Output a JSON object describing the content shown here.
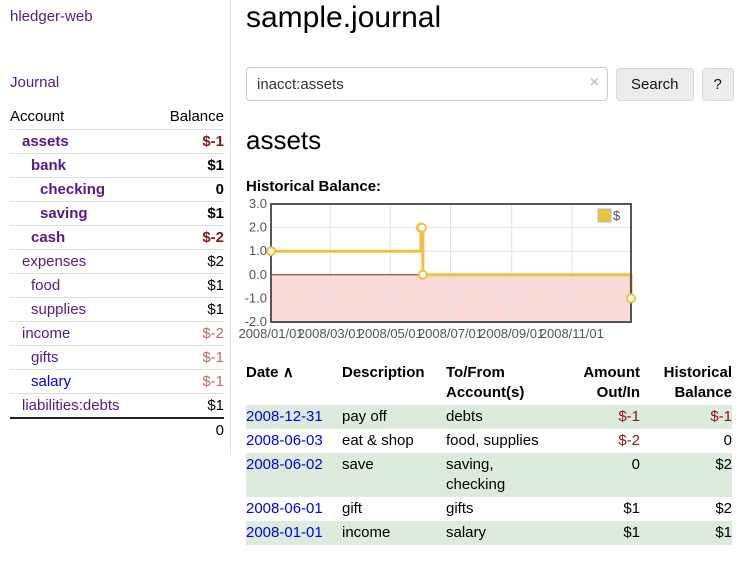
{
  "sidebar": {
    "brand": "hledger-web",
    "journal_link": "Journal",
    "accounts_table": {
      "account_header": "Account",
      "balance_header": "Balance",
      "rows": [
        {
          "account": "assets",
          "indent": 1,
          "bold": true,
          "balance": "$-1",
          "negative": "strong",
          "link": "visited"
        },
        {
          "account": "bank",
          "indent": 2,
          "bold": true,
          "balance": "$1",
          "negative": null,
          "link": "visited"
        },
        {
          "account": "checking",
          "indent": 3,
          "bold": true,
          "balance": "0",
          "negative": null,
          "link": "visited"
        },
        {
          "account": "saving",
          "indent": 3,
          "bold": true,
          "balance": "$1",
          "negative": null,
          "link": "visited"
        },
        {
          "account": "cash",
          "indent": 2,
          "bold": true,
          "balance": "$-2",
          "negative": "strong",
          "link": "visited"
        },
        {
          "account": "expenses",
          "indent": 1,
          "bold": false,
          "balance": "$2",
          "negative": null,
          "link": "visited"
        },
        {
          "account": "food",
          "indent": 2,
          "bold": false,
          "balance": "$1",
          "negative": null,
          "link": "visited"
        },
        {
          "account": "supplies",
          "indent": 2,
          "bold": false,
          "balance": "$1",
          "negative": null,
          "link": "visited"
        },
        {
          "account": "income",
          "indent": 1,
          "bold": false,
          "balance": "$-2",
          "negative": "soft",
          "link": "visited"
        },
        {
          "account": "gifts",
          "indent": 2,
          "bold": false,
          "balance": "$-1",
          "negative": "soft",
          "link": "visited"
        },
        {
          "account": "salary",
          "indent": 2,
          "bold": false,
          "balance": "$-1",
          "negative": "soft",
          "link": "unvisited"
        },
        {
          "account": "liabilities:debts",
          "indent": 1,
          "bold": false,
          "balance": "$1",
          "negative": null,
          "link": "visited"
        }
      ],
      "total": "0"
    }
  },
  "main": {
    "title": "sample.journal",
    "search": {
      "query": "inacct:assets",
      "clear_icon": "×",
      "search_button": "Search",
      "help_button": "?"
    },
    "account_heading": "assets",
    "chart_heading": "Historical Balance:"
  },
  "chart_data": {
    "type": "line",
    "step": true,
    "title": "Historical Balance",
    "series": [
      {
        "name": "$",
        "color": "#edc240",
        "points": [
          {
            "date": "2008-01-01",
            "day": 0,
            "value": 1
          },
          {
            "date": "2008-06-01",
            "day": 152,
            "value": 2
          },
          {
            "date": "2008-06-02",
            "day": 153,
            "value": 2
          },
          {
            "date": "2008-06-03",
            "day": 154,
            "value": 0
          },
          {
            "date": "2008-12-31",
            "day": 365,
            "value": -1
          }
        ]
      }
    ],
    "x_ticks": [
      {
        "label": "2008/01/01",
        "day": 0
      },
      {
        "label": "2008/03/01",
        "day": 60
      },
      {
        "label": "2008/05/01",
        "day": 121
      },
      {
        "label": "2008/07/01",
        "day": 182
      },
      {
        "label": "2008/09/01",
        "day": 244
      },
      {
        "label": "2008/11/01",
        "day": 305
      }
    ],
    "x_range_days": [
      0,
      365
    ],
    "y_ticks": [
      {
        "label": "3.0",
        "value": 3
      },
      {
        "label": "2.0",
        "value": 2
      },
      {
        "label": "1.0",
        "value": 1
      },
      {
        "label": "0.0",
        "value": 0
      },
      {
        "label": "-1.0",
        "value": -1
      },
      {
        "label": "-2.0",
        "value": -2
      }
    ],
    "ylim": [
      -2,
      3
    ],
    "grid": true,
    "legend_position": "top-right",
    "legend_label": "$",
    "colors": {
      "line": "#edc240",
      "marker_fill": "#ffffff",
      "negative_region": "#fbdada",
      "zero_line": "#8f1d1d",
      "gridline": "#e3e3e3",
      "border": "#555555"
    }
  },
  "register_table": {
    "headers": {
      "date": "Date",
      "sort_icon": "∧",
      "description": "Description",
      "tofrom": "To/From Account(s)",
      "amount": "Amount Out/In",
      "balance": "Historical Balance"
    },
    "rows": [
      {
        "date": "2008-12-31",
        "description": "pay off",
        "accounts": "debts",
        "amount": "$-1",
        "amount_negative": true,
        "balance": "$-1",
        "balance_negative": true
      },
      {
        "date": "2008-06-03",
        "description": "eat & shop",
        "accounts": "food, supplies",
        "amount": "$-2",
        "amount_negative": true,
        "balance": "0",
        "balance_negative": false
      },
      {
        "date": "2008-06-02",
        "description": "save",
        "accounts": "saving, checking",
        "amount": "0",
        "amount_negative": false,
        "balance": "$2",
        "balance_negative": false
      },
      {
        "date": "2008-06-01",
        "description": "gift",
        "accounts": "gifts",
        "amount": "$1",
        "amount_negative": false,
        "balance": "$2",
        "balance_negative": false
      },
      {
        "date": "2008-01-01",
        "description": "income",
        "accounts": "salary",
        "amount": "$1",
        "amount_negative": false,
        "balance": "$1",
        "balance_negative": false
      }
    ],
    "stripe_color": "#dcebdc"
  },
  "colors": {
    "link_visited": "#551a8b",
    "link_unvisited": "#0000ee",
    "negative_strong": "#8b1616",
    "negative_soft": "#c46a6a"
  }
}
